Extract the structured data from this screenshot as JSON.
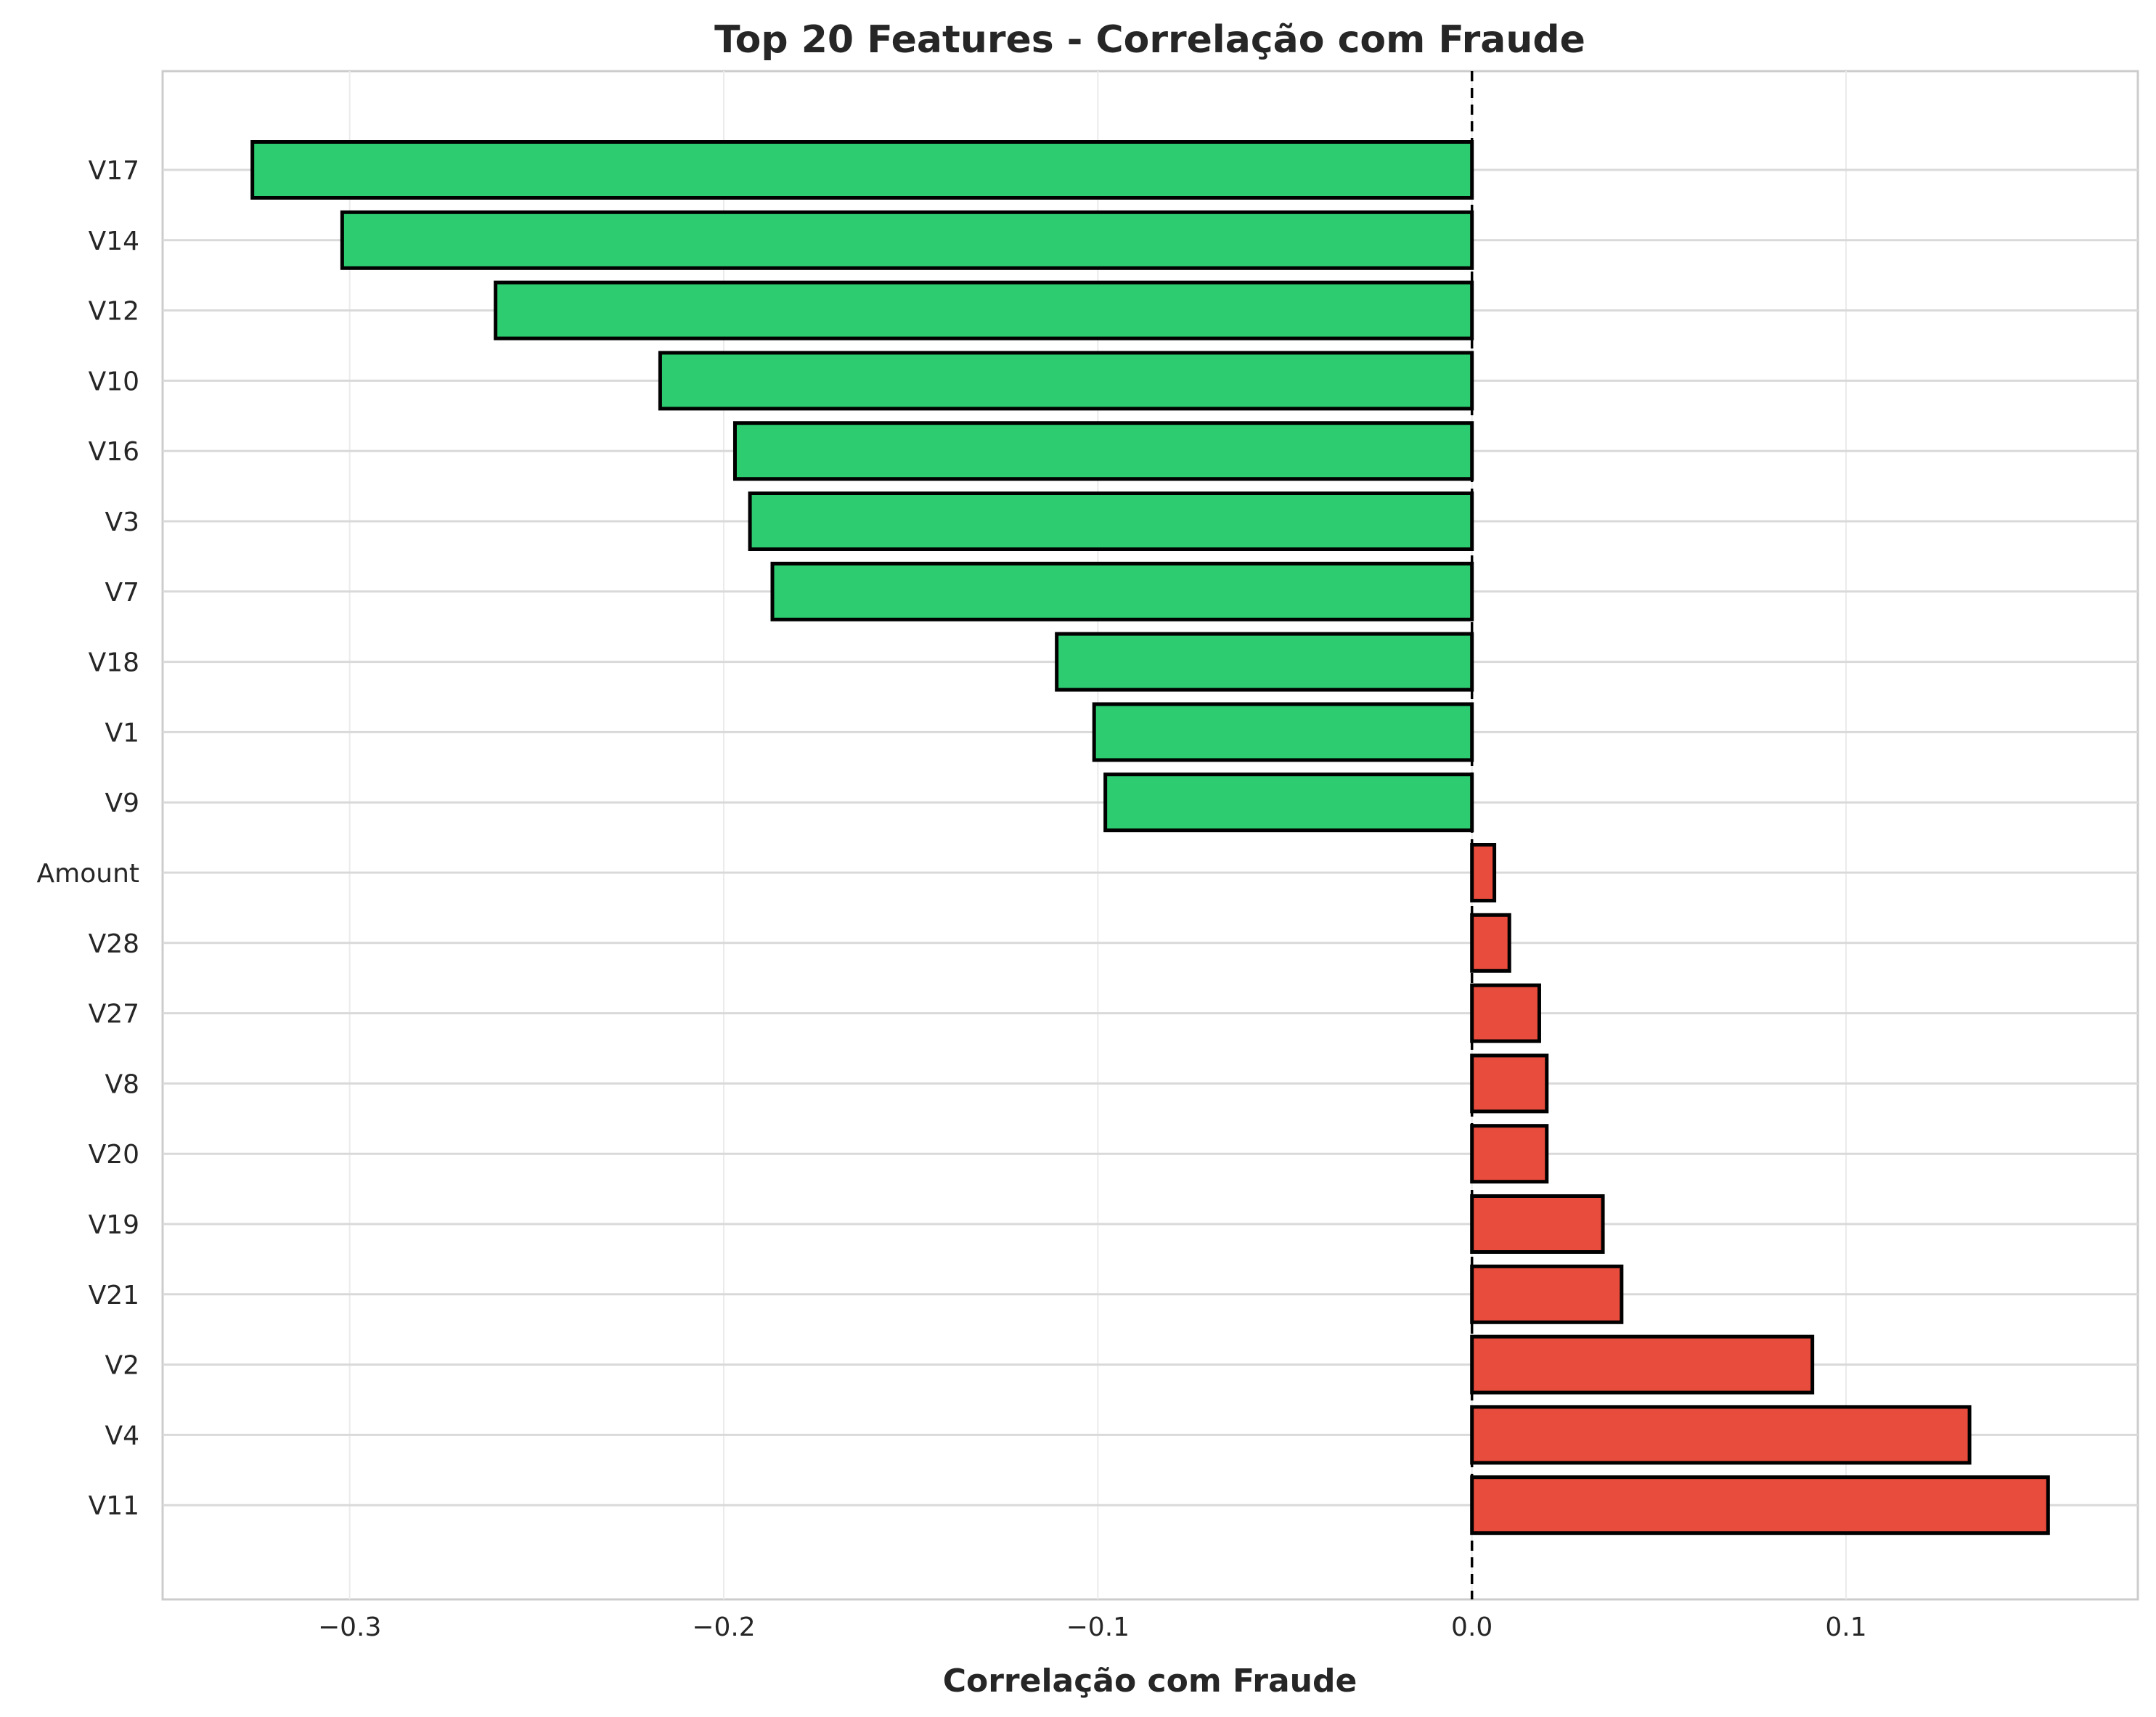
{
  "chart_data": {
    "type": "bar",
    "orientation": "horizontal",
    "title": "Top 20 Features - Correlação com Fraude",
    "xlabel": "Correlação com Fraude",
    "ylabel": "",
    "categories": [
      "V17",
      "V14",
      "V12",
      "V10",
      "V16",
      "V3",
      "V7",
      "V18",
      "V1",
      "V9",
      "Amount",
      "V28",
      "V27",
      "V8",
      "V20",
      "V19",
      "V21",
      "V2",
      "V4",
      "V11"
    ],
    "values": [
      -0.326,
      -0.302,
      -0.261,
      -0.217,
      -0.197,
      -0.193,
      -0.187,
      -0.111,
      -0.101,
      -0.098,
      0.006,
      0.01,
      0.018,
      0.02,
      0.02,
      0.035,
      0.04,
      0.091,
      0.133,
      0.154
    ],
    "xlim": [
      -0.35,
      0.178
    ],
    "xticks": [
      -0.3,
      -0.2,
      -0.1,
      0.0,
      0.1
    ],
    "xtick_labels": [
      "−0.3",
      "−0.2",
      "−0.1",
      "0.0",
      "0.1"
    ],
    "reference_line": {
      "x": 0.0,
      "style": "dashed",
      "color": "#000000"
    },
    "grid": true,
    "colors": {
      "negative": "#2ecc71",
      "positive": "#e74c3c",
      "edge": "#000000",
      "grid": "#d9d9d9",
      "text": "#262626"
    }
  }
}
